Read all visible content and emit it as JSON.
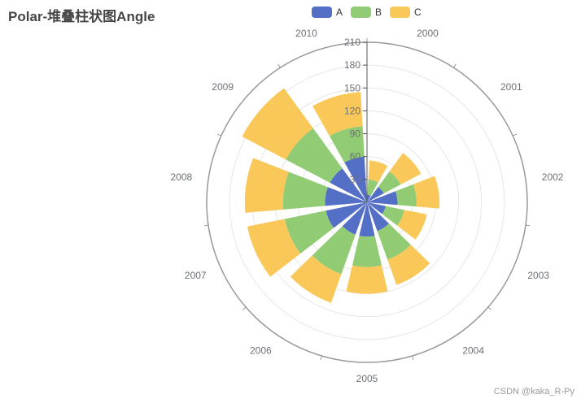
{
  "title": "Polar-堆叠柱状图Angle",
  "watermark": "CSDN @kaka_R-Py",
  "chart_data": {
    "type": "bar",
    "coordinate_system": "polar",
    "stacked": true,
    "angle_axis": {
      "categories": [
        "2000",
        "2001",
        "2002",
        "2003",
        "2004",
        "2005",
        "2006",
        "2007",
        "2008",
        "2009",
        "2010"
      ]
    },
    "radius_axis": {
      "min": 0,
      "max": 210,
      "ticks": [
        0,
        30,
        60,
        90,
        120,
        150,
        180,
        210
      ]
    },
    "series": [
      {
        "name": "A",
        "color": "#5470c6",
        "values": [
          10,
          25,
          40,
          25,
          40,
          45,
          45,
          55,
          55,
          55,
          60
        ]
      },
      {
        "name": "B",
        "color": "#91cc75",
        "values": [
          20,
          25,
          25,
          25,
          40,
          40,
          55,
          55,
          55,
          65,
          40
        ]
      },
      {
        "name": "C",
        "color": "#fac858",
        "values": [
          25,
          30,
          30,
          30,
          35,
          35,
          40,
          50,
          50,
          65,
          45
        ]
      }
    ],
    "legend_position": "top-center"
  }
}
